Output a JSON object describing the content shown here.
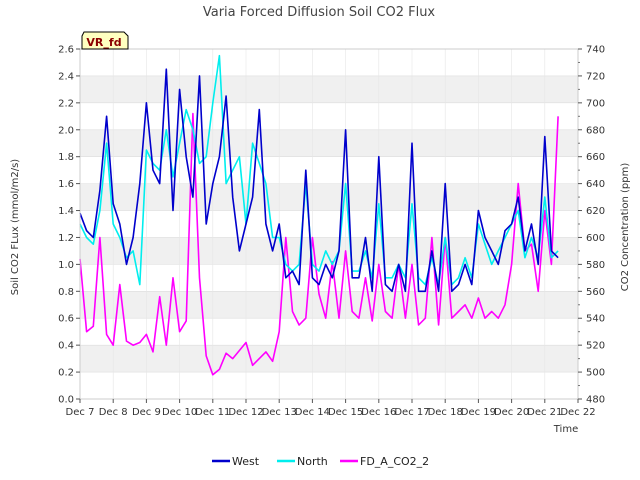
{
  "chart_data": {
    "type": "line",
    "title": "Varia Forced Diffusion Soil CO2 Flux",
    "xlabel": "Time",
    "ylabel": "Soil CO2 FLux (mmol/m2/s)",
    "y2label": "CO2 Concentration (ppm)",
    "badge": "VR_fd",
    "x_ticks": [
      "Dec 7",
      "Dec 8",
      "Dec 9",
      "Dec 10",
      "Dec 11",
      "Dec 12",
      "Dec 13",
      "Dec 14",
      "Dec 15",
      "Dec 16",
      "Dec 17",
      "Dec 18",
      "Dec 19",
      "Dec 20",
      "Dec 21",
      "Dec 22"
    ],
    "xlim": [
      7,
      22
    ],
    "ylim": [
      0.0,
      2.6
    ],
    "y_ticks": [
      "0.0",
      "0.2",
      "0.4",
      "0.6",
      "0.8",
      "1.0",
      "1.2",
      "1.4",
      "1.6",
      "1.8",
      "2.0",
      "2.2",
      "2.4",
      "2.6"
    ],
    "y2lim": [
      480,
      740
    ],
    "y2_ticks": [
      "480",
      "500",
      "520",
      "540",
      "560",
      "580",
      "600",
      "620",
      "640",
      "660",
      "680",
      "700",
      "720",
      "740"
    ],
    "grid": true,
    "legend_position": "bottom-center",
    "series": [
      {
        "name": "West",
        "axis": "left",
        "color": "#0000cc",
        "x": [
          7.0,
          7.2,
          7.4,
          7.6,
          7.8,
          8.0,
          8.2,
          8.4,
          8.6,
          8.8,
          9.0,
          9.2,
          9.4,
          9.6,
          9.8,
          10.0,
          10.2,
          10.4,
          10.6,
          10.8,
          11.0,
          11.2,
          11.4,
          11.6,
          11.8,
          12.0,
          12.2,
          12.4,
          12.6,
          12.8,
          13.0,
          13.2,
          13.4,
          13.6,
          13.8,
          14.0,
          14.2,
          14.4,
          14.6,
          14.8,
          15.0,
          15.2,
          15.4,
          15.6,
          15.8,
          16.0,
          16.2,
          16.4,
          16.6,
          16.8,
          17.0,
          17.2,
          17.4,
          17.6,
          17.8,
          18.0,
          18.2,
          18.4,
          18.6,
          18.8,
          19.0,
          19.2,
          19.4,
          19.6,
          19.8,
          20.0,
          20.2,
          20.4,
          20.6,
          20.8,
          21.0,
          21.2,
          21.4
        ],
        "values": [
          1.38,
          1.25,
          1.2,
          1.55,
          2.1,
          1.45,
          1.3,
          1.0,
          1.2,
          1.6,
          2.2,
          1.7,
          1.6,
          2.45,
          1.4,
          2.3,
          1.8,
          1.5,
          2.4,
          1.3,
          1.6,
          1.8,
          2.25,
          1.5,
          1.1,
          1.3,
          1.5,
          2.15,
          1.3,
          1.1,
          1.3,
          0.9,
          0.95,
          0.85,
          1.7,
          0.9,
          0.85,
          1.0,
          0.9,
          1.1,
          2.0,
          0.9,
          0.9,
          1.2,
          0.8,
          1.8,
          0.85,
          0.8,
          1.0,
          0.8,
          1.9,
          0.8,
          0.8,
          1.1,
          0.8,
          1.6,
          0.8,
          0.85,
          1.0,
          0.85,
          1.4,
          1.2,
          1.1,
          1.0,
          1.25,
          1.3,
          1.5,
          1.1,
          1.3,
          1.0,
          1.95,
          1.1,
          1.05
        ]
      },
      {
        "name": "North",
        "axis": "left",
        "color": "#00eeee",
        "x": [
          7.0,
          7.2,
          7.4,
          7.6,
          7.8,
          8.0,
          8.2,
          8.4,
          8.6,
          8.8,
          9.0,
          9.2,
          9.4,
          9.6,
          9.8,
          10.0,
          10.2,
          10.4,
          10.6,
          10.8,
          11.0,
          11.2,
          11.4,
          11.6,
          11.8,
          12.0,
          12.2,
          12.4,
          12.6,
          12.8,
          13.0,
          13.2,
          13.4,
          13.6,
          13.8,
          14.0,
          14.2,
          14.4,
          14.6,
          14.8,
          15.0,
          15.2,
          15.4,
          15.6,
          15.8,
          16.0,
          16.2,
          16.4,
          16.6,
          16.8,
          17.0,
          17.2,
          17.4,
          17.6,
          17.8,
          18.0,
          18.2,
          18.4,
          18.6,
          18.8,
          19.0,
          19.2,
          19.4,
          19.6,
          19.8,
          20.0,
          20.2,
          20.4,
          20.6,
          20.8,
          21.0,
          21.2,
          21.4
        ],
        "values": [
          1.3,
          1.2,
          1.15,
          1.4,
          1.9,
          1.3,
          1.2,
          1.05,
          1.1,
          0.85,
          1.85,
          1.75,
          1.7,
          2.0,
          1.65,
          1.9,
          2.15,
          2.0,
          1.75,
          1.8,
          2.2,
          2.55,
          1.6,
          1.7,
          1.8,
          1.3,
          1.9,
          1.75,
          1.6,
          1.2,
          1.2,
          1.0,
          0.95,
          1.0,
          1.6,
          1.0,
          0.95,
          1.1,
          1.0,
          1.1,
          1.6,
          0.95,
          0.95,
          1.1,
          0.9,
          1.45,
          0.9,
          0.9,
          1.0,
          0.9,
          1.45,
          0.9,
          0.85,
          1.05,
          0.85,
          1.2,
          0.85,
          0.9,
          1.05,
          0.9,
          1.3,
          1.15,
          1.0,
          1.1,
          1.2,
          1.3,
          1.4,
          1.05,
          1.2,
          1.05,
          1.5,
          1.05,
          1.1
        ]
      },
      {
        "name": "FD_A_CO2_2",
        "axis": "right",
        "color": "#ff00ff",
        "x": [
          7.0,
          7.2,
          7.4,
          7.6,
          7.8,
          8.0,
          8.2,
          8.4,
          8.6,
          8.8,
          9.0,
          9.2,
          9.4,
          9.6,
          9.8,
          10.0,
          10.2,
          10.4,
          10.6,
          10.8,
          11.0,
          11.2,
          11.4,
          11.6,
          11.8,
          12.0,
          12.2,
          12.4,
          12.6,
          12.8,
          13.0,
          13.2,
          13.4,
          13.6,
          13.8,
          14.0,
          14.2,
          14.4,
          14.6,
          14.8,
          15.0,
          15.2,
          15.4,
          15.6,
          15.8,
          16.0,
          16.2,
          16.4,
          16.6,
          16.8,
          17.0,
          17.2,
          17.4,
          17.6,
          17.8,
          18.0,
          18.2,
          18.4,
          18.6,
          18.8,
          19.0,
          19.2,
          19.4,
          19.6,
          19.8,
          20.0,
          20.2,
          20.4,
          20.6,
          20.8,
          21.0,
          21.2,
          21.4
        ],
        "values": [
          584,
          530,
          534,
          600,
          528,
          520,
          565,
          523,
          520,
          522,
          528,
          515,
          556,
          520,
          570,
          530,
          538,
          692,
          570,
          512,
          498,
          502,
          514,
          510,
          516,
          522,
          505,
          510,
          515,
          508,
          530,
          600,
          545,
          535,
          540,
          600,
          558,
          540,
          582,
          540,
          590,
          545,
          540,
          570,
          538,
          580,
          545,
          540,
          580,
          540,
          580,
          535,
          540,
          600,
          535,
          600,
          540,
          545,
          550,
          540,
          555,
          540,
          545,
          540,
          550,
          580,
          640,
          590,
          595,
          560,
          620,
          580,
          690
        ]
      }
    ]
  }
}
